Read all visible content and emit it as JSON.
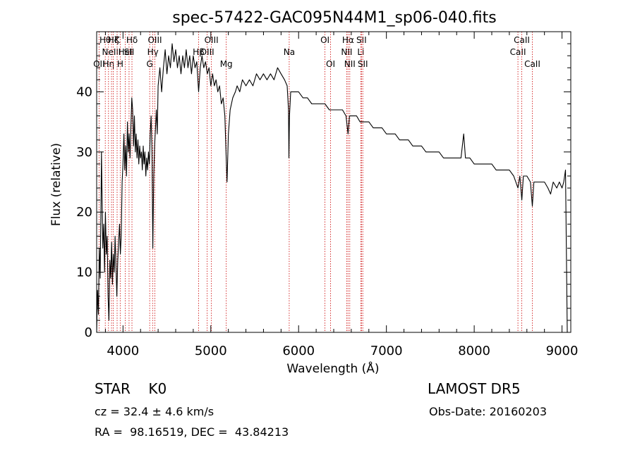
{
  "chart_data": {
    "type": "line",
    "title": "spec-57422-GAC095N44M1_sp06-040.fits",
    "xlabel": "Wavelength (Å)",
    "ylabel": "Flux (relative)",
    "xlim": [
      3700,
      9100
    ],
    "ylim": [
      0,
      50
    ],
    "xticks": [
      4000,
      5000,
      6000,
      7000,
      8000,
      9000
    ],
    "yticks": [
      0,
      10,
      20,
      30,
      40
    ],
    "grid": false,
    "series": [
      {
        "points": [
          [
            3700,
            0
          ],
          [
            3710,
            7
          ],
          [
            3720,
            3
          ],
          [
            3730,
            14
          ],
          [
            3740,
            9
          ],
          [
            3750,
            22
          ],
          [
            3755,
            30
          ],
          [
            3760,
            24
          ],
          [
            3770,
            14
          ],
          [
            3780,
            18
          ],
          [
            3790,
            10
          ],
          [
            3800,
            20
          ],
          [
            3810,
            13
          ],
          [
            3820,
            16
          ],
          [
            3830,
            6
          ],
          [
            3840,
            2
          ],
          [
            3850,
            12
          ],
          [
            3860,
            9
          ],
          [
            3870,
            15
          ],
          [
            3880,
            8
          ],
          [
            3890,
            13
          ],
          [
            3900,
            10
          ],
          [
            3910,
            16
          ],
          [
            3920,
            11
          ],
          [
            3930,
            6
          ],
          [
            3940,
            12
          ],
          [
            3950,
            15
          ],
          [
            3960,
            18
          ],
          [
            3970,
            13
          ],
          [
            3980,
            16
          ],
          [
            3990,
            25
          ],
          [
            4000,
            28
          ],
          [
            4010,
            33
          ],
          [
            4020,
            27
          ],
          [
            4030,
            31
          ],
          [
            4040,
            26
          ],
          [
            4050,
            35
          ],
          [
            4060,
            30
          ],
          [
            4070,
            33
          ],
          [
            4080,
            29
          ],
          [
            4090,
            34
          ],
          [
            4100,
            39
          ],
          [
            4110,
            37
          ],
          [
            4120,
            31
          ],
          [
            4130,
            36
          ],
          [
            4140,
            30
          ],
          [
            4150,
            33
          ],
          [
            4160,
            29
          ],
          [
            4170,
            32
          ],
          [
            4180,
            28
          ],
          [
            4190,
            31
          ],
          [
            4200,
            29
          ],
          [
            4210,
            30
          ],
          [
            4220,
            27
          ],
          [
            4230,
            31
          ],
          [
            4240,
            28
          ],
          [
            4250,
            30
          ],
          [
            4260,
            26
          ],
          [
            4270,
            29
          ],
          [
            4280,
            27
          ],
          [
            4290,
            30
          ],
          [
            4300,
            28
          ],
          [
            4310,
            33
          ],
          [
            4320,
            36
          ],
          [
            4330,
            30
          ],
          [
            4340,
            14
          ],
          [
            4350,
            26
          ],
          [
            4360,
            31
          ],
          [
            4370,
            34
          ],
          [
            4380,
            37
          ],
          [
            4390,
            33
          ],
          [
            4400,
            41
          ],
          [
            4420,
            44
          ],
          [
            4440,
            40
          ],
          [
            4460,
            44
          ],
          [
            4480,
            47
          ],
          [
            4500,
            43
          ],
          [
            4520,
            46
          ],
          [
            4540,
            44
          ],
          [
            4560,
            48
          ],
          [
            4580,
            45
          ],
          [
            4600,
            47
          ],
          [
            4620,
            44
          ],
          [
            4640,
            46
          ],
          [
            4660,
            43
          ],
          [
            4680,
            46
          ],
          [
            4700,
            44
          ],
          [
            4720,
            47
          ],
          [
            4740,
            44
          ],
          [
            4760,
            46
          ],
          [
            4780,
            43
          ],
          [
            4800,
            46
          ],
          [
            4820,
            44
          ],
          [
            4840,
            45
          ],
          [
            4861,
            40
          ],
          [
            4880,
            44
          ],
          [
            4900,
            46
          ],
          [
            4920,
            44
          ],
          [
            4940,
            45
          ],
          [
            4960,
            43
          ],
          [
            4980,
            44
          ],
          [
            5000,
            41
          ],
          [
            5020,
            43
          ],
          [
            5040,
            41
          ],
          [
            5060,
            42
          ],
          [
            5080,
            40
          ],
          [
            5100,
            41
          ],
          [
            5120,
            38
          ],
          [
            5140,
            39
          ],
          [
            5160,
            36
          ],
          [
            5175,
            29
          ],
          [
            5185,
            25
          ],
          [
            5200,
            33
          ],
          [
            5220,
            37
          ],
          [
            5250,
            39
          ],
          [
            5280,
            40
          ],
          [
            5300,
            41
          ],
          [
            5330,
            40
          ],
          [
            5360,
            42
          ],
          [
            5400,
            41
          ],
          [
            5440,
            42
          ],
          [
            5480,
            41
          ],
          [
            5520,
            43
          ],
          [
            5560,
            42
          ],
          [
            5600,
            43
          ],
          [
            5640,
            42
          ],
          [
            5680,
            43
          ],
          [
            5720,
            42
          ],
          [
            5760,
            44
          ],
          [
            5800,
            43
          ],
          [
            5840,
            42
          ],
          [
            5870,
            41
          ],
          [
            5885,
            37
          ],
          [
            5890,
            29
          ],
          [
            5896,
            36
          ],
          [
            5910,
            40
          ],
          [
            5950,
            40
          ],
          [
            6000,
            40
          ],
          [
            6050,
            39
          ],
          [
            6100,
            39
          ],
          [
            6150,
            38
          ],
          [
            6200,
            38
          ],
          [
            6250,
            38
          ],
          [
            6300,
            38
          ],
          [
            6350,
            37
          ],
          [
            6400,
            37
          ],
          [
            6450,
            37
          ],
          [
            6500,
            37
          ],
          [
            6540,
            36
          ],
          [
            6563,
            33
          ],
          [
            6580,
            36
          ],
          [
            6620,
            36
          ],
          [
            6660,
            36
          ],
          [
            6700,
            35
          ],
          [
            6750,
            35
          ],
          [
            6800,
            35
          ],
          [
            6850,
            34
          ],
          [
            6900,
            34
          ],
          [
            6950,
            34
          ],
          [
            7000,
            33
          ],
          [
            7050,
            33
          ],
          [
            7100,
            33
          ],
          [
            7150,
            32
          ],
          [
            7200,
            32
          ],
          [
            7250,
            32
          ],
          [
            7300,
            31
          ],
          [
            7350,
            31
          ],
          [
            7400,
            31
          ],
          [
            7450,
            30
          ],
          [
            7500,
            30
          ],
          [
            7550,
            30
          ],
          [
            7600,
            30
          ],
          [
            7650,
            29
          ],
          [
            7700,
            29
          ],
          [
            7750,
            29
          ],
          [
            7800,
            29
          ],
          [
            7850,
            29
          ],
          [
            7880,
            33
          ],
          [
            7900,
            29
          ],
          [
            7950,
            29
          ],
          [
            8000,
            28
          ],
          [
            8050,
            28
          ],
          [
            8100,
            28
          ],
          [
            8150,
            28
          ],
          [
            8200,
            28
          ],
          [
            8250,
            27
          ],
          [
            8300,
            27
          ],
          [
            8350,
            27
          ],
          [
            8400,
            27
          ],
          [
            8450,
            26
          ],
          [
            8498,
            24
          ],
          [
            8520,
            26
          ],
          [
            8542,
            22
          ],
          [
            8560,
            26
          ],
          [
            8600,
            26
          ],
          [
            8640,
            25
          ],
          [
            8662,
            21
          ],
          [
            8680,
            25
          ],
          [
            8720,
            25
          ],
          [
            8760,
            25
          ],
          [
            8800,
            25
          ],
          [
            8840,
            24
          ],
          [
            8870,
            23
          ],
          [
            8900,
            25
          ],
          [
            8940,
            24
          ],
          [
            8970,
            25
          ],
          [
            9000,
            24
          ],
          [
            9020,
            25
          ],
          [
            9040,
            27
          ],
          [
            9060,
            0
          ]
        ]
      }
    ],
    "lines": [
      {
        "x": 3727,
        "label": "OII",
        "row": 2
      },
      {
        "x": 3798,
        "label": "Hθ",
        "row": 0
      },
      {
        "x": 3835,
        "label": "Hη",
        "row": 2
      },
      {
        "x": 3869,
        "label": "NeIII",
        "row": 1
      },
      {
        "x": 3889,
        "label": "Hζ",
        "row": 0
      },
      {
        "x": 3933,
        "label": "K",
        "row": 0
      },
      {
        "x": 3968,
        "label": "H",
        "row": 2
      },
      {
        "x": 4026,
        "label": "HeI",
        "row": 1
      },
      {
        "x": 4069,
        "label": "SII",
        "row": 1
      },
      {
        "x": 4102,
        "label": "Hδ",
        "row": 0
      },
      {
        "x": 4304,
        "label": "G",
        "row": 2
      },
      {
        "x": 4340,
        "label": "Hγ",
        "row": 1
      },
      {
        "x": 4363,
        "label": "OIII",
        "row": 0
      },
      {
        "x": 4861,
        "label": "Hβ",
        "row": 1
      },
      {
        "x": 4959,
        "label": "OIII",
        "row": 1
      },
      {
        "x": 5007,
        "label": "OIII",
        "row": 0
      },
      {
        "x": 5176,
        "label": "Mg",
        "row": 2
      },
      {
        "x": 5893,
        "label": "Na",
        "row": 1
      },
      {
        "x": 6300,
        "label": "OI",
        "row": 0
      },
      {
        "x": 6364,
        "label": "OI",
        "row": 2
      },
      {
        "x": 6548,
        "label": "NII",
        "row": 1
      },
      {
        "x": 6563,
        "label": "Hα",
        "row": 0
      },
      {
        "x": 6583,
        "label": "NII",
        "row": 2
      },
      {
        "x": 6708,
        "label": "Li",
        "row": 1
      },
      {
        "x": 6716,
        "label": "SII",
        "row": 0
      },
      {
        "x": 6731,
        "label": "SII",
        "row": 2
      },
      {
        "x": 8498,
        "label": "CaII",
        "row": 1
      },
      {
        "x": 8542,
        "label": "CaII",
        "row": 0
      },
      {
        "x": 8662,
        "label": "CaII",
        "row": 2
      }
    ],
    "line_color": "#cc0000"
  },
  "info": {
    "star": "STAR    K0",
    "cz": "cz = 32.4 ± 4.6 km/s",
    "radec": "RA =  98.16519, DEC =  43.84213",
    "survey": "LAMOST DR5",
    "obs_date": "Obs-Date: 20160203"
  }
}
